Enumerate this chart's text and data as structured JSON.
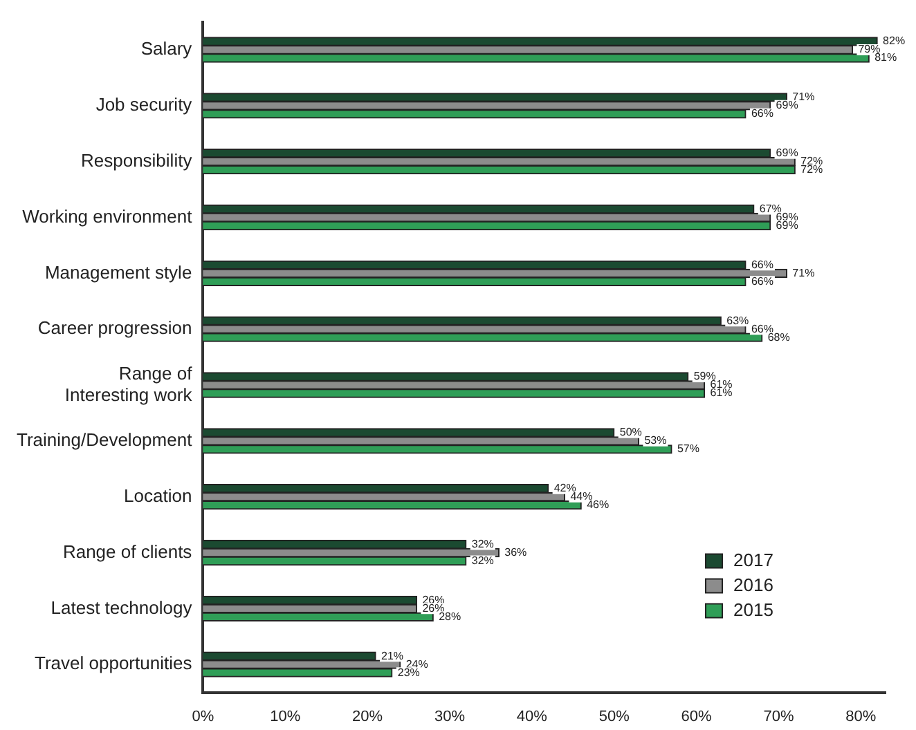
{
  "chart_data": {
    "type": "bar",
    "orientation": "horizontal",
    "categories": [
      "Salary",
      "Job security",
      "Responsibility",
      "Working environment",
      "Management style",
      "Career progression",
      "Range of\nInteresting work",
      "Training/Development",
      "Location",
      "Range of clients",
      "Latest technology",
      "Travel opportunities"
    ],
    "series": [
      {
        "name": "2017",
        "color": "#1b4a31",
        "values": [
          82,
          71,
          69,
          67,
          66,
          63,
          59,
          50,
          42,
          32,
          26,
          21
        ],
        "value_labels": [
          "82%",
          "71%",
          "69%",
          "67%",
          "66%",
          "63%",
          "59%",
          "50%",
          "42%",
          "32%",
          "26%",
          "21%"
        ]
      },
      {
        "name": "2016",
        "color": "#8c8c8c",
        "values": [
          79,
          69,
          72,
          69,
          71,
          66,
          61,
          53,
          44,
          36,
          26,
          24
        ],
        "value_labels": [
          "79%",
          "69%",
          "72%",
          "69%",
          "71%",
          "66%",
          "61%",
          "53%",
          "44%",
          "36%",
          "26%",
          "24%"
        ]
      },
      {
        "name": "2015",
        "color": "#2f9e57",
        "values": [
          81,
          66,
          72,
          69,
          66,
          68,
          61,
          57,
          46,
          32,
          28,
          23
        ],
        "value_labels": [
          "81%",
          "66%",
          "72%",
          "69%",
          "66%",
          "68%",
          "61%",
          "57%",
          "46%",
          "32%",
          "28%",
          "23%"
        ]
      }
    ],
    "xlim": [
      0,
      83
    ],
    "xticks": [
      {
        "value": 0,
        "label": "0%"
      },
      {
        "value": 10,
        "label": "10%"
      },
      {
        "value": 20,
        "label": "20%"
      },
      {
        "value": 30,
        "label": "30%"
      },
      {
        "value": 40,
        "label": "40%"
      },
      {
        "value": 50,
        "label": "50%"
      },
      {
        "value": 60,
        "label": "60%"
      },
      {
        "value": 70,
        "label": "70%"
      },
      {
        "value": 80,
        "label": "80%"
      }
    ],
    "grid": false,
    "legend": "bottom right"
  }
}
